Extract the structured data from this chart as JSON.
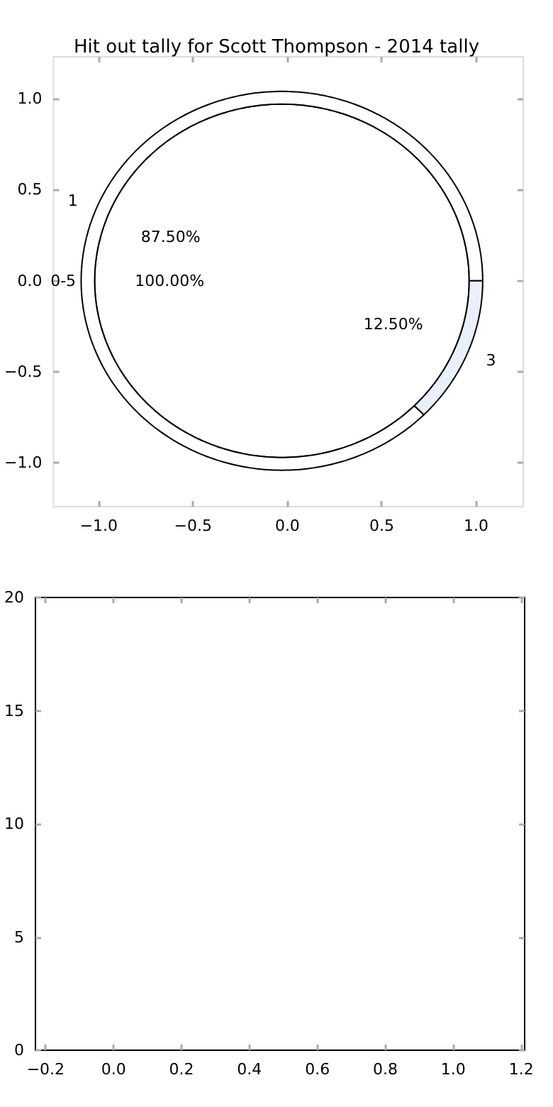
{
  "chart_data": [
    {
      "type": "scatter",
      "title": "Hit out tally for Scott Thompson - 2014 tally",
      "xlim": [
        -1.24,
        1.25
      ],
      "ylim": [
        -1.24,
        1.23
      ],
      "xticks": [
        {
          "value": -1,
          "label": "−1.0"
        },
        {
          "value": -0.5,
          "label": "−0.5"
        },
        {
          "value": 0,
          "label": "0.0"
        },
        {
          "value": 0.5,
          "label": "0.5"
        },
        {
          "value": 1,
          "label": "1.0"
        }
      ],
      "yticks": [
        {
          "value": -1,
          "label": "−1.0"
        },
        {
          "value": -0.5,
          "label": "−0.5"
        },
        {
          "value": 0,
          "label": "0.0"
        },
        {
          "value": 0.5,
          "label": "0.5"
        },
        {
          "value": 1,
          "label": "1.0"
        }
      ]
    },
    {
      "type": "donut",
      "categories": [
        "1",
        "3"
      ],
      "values": [
        87.5,
        12.5
      ],
      "value_labels": [
        "87.50%",
        "12.50%"
      ],
      "colors": [
        "#ffffff",
        "#eaf0fb"
      ]
    },
    {
      "type": "pie",
      "categories": [
        "0-5"
      ],
      "values": [
        100
      ],
      "value_labels": [
        "100.00%"
      ],
      "colors": [
        "#ffffff"
      ]
    },
    {
      "type": "scatter",
      "xlim": [
        -0.23,
        1.21
      ],
      "xticks": [
        {
          "value": -0.2,
          "label": "−0.2"
        },
        {
          "value": 0,
          "label": "0.0"
        },
        0.2,
        0.4,
        0.6,
        0.8,
        {
          "value": 1,
          "label": "1.0"
        },
        1.2
      ],
      "ylim": [
        0,
        20
      ],
      "yticks": [
        0,
        5,
        10,
        15,
        20
      ]
    }
  ]
}
